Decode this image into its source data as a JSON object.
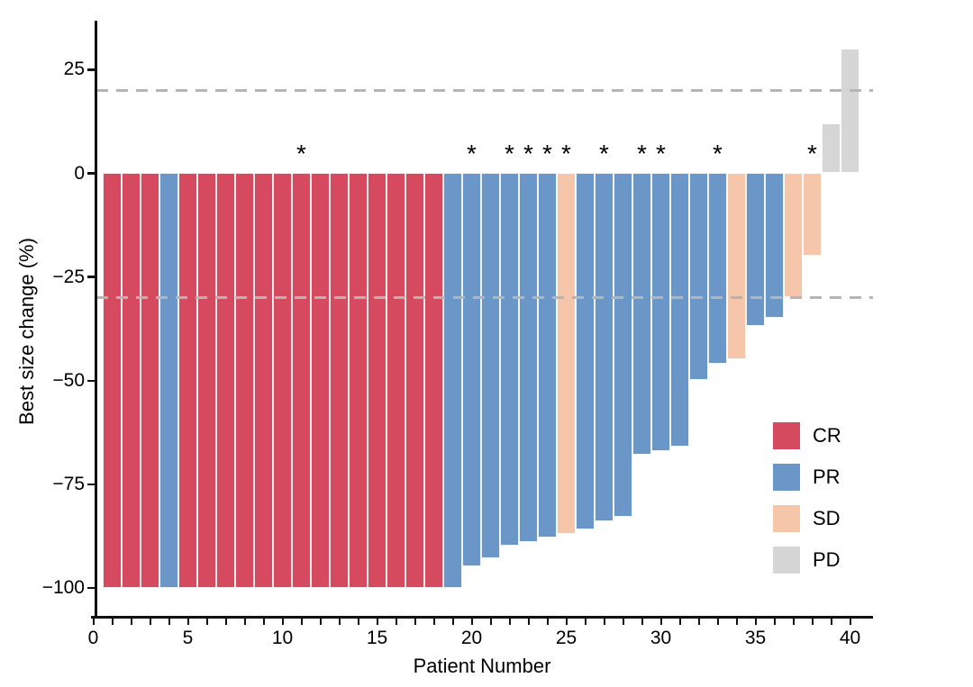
{
  "figure": {
    "y_axis": {
      "title": "Best size change (%)",
      "ticks": [
        {
          "v": 25,
          "label": "25"
        },
        {
          "v": 0,
          "label": "0"
        },
        {
          "v": -25,
          "label": "−25"
        },
        {
          "v": -50,
          "label": "−50"
        },
        {
          "v": -75,
          "label": "−75"
        },
        {
          "v": -100,
          "label": "−100"
        }
      ]
    },
    "x_axis": {
      "title": "Patient Number",
      "major_ticks": [
        {
          "v": 0,
          "label": "0"
        },
        {
          "v": 5,
          "label": "5"
        },
        {
          "v": 10,
          "label": "10"
        },
        {
          "v": 15,
          "label": "15"
        },
        {
          "v": 20,
          "label": "20"
        },
        {
          "v": 25,
          "label": "25"
        },
        {
          "v": 30,
          "label": "30"
        },
        {
          "v": 35,
          "label": "35"
        },
        {
          "v": 40,
          "label": "40"
        }
      ],
      "minor_tick_start": 0,
      "minor_tick_end": 40
    },
    "legend": {
      "items": [
        {
          "key": "cr",
          "label": "CR",
          "color": "#d64a60"
        },
        {
          "key": "pr",
          "label": "PR",
          "color": "#6b96c8"
        },
        {
          "key": "sd",
          "label": "SD",
          "color": "#f6c6aa"
        },
        {
          "key": "pd",
          "label": "PD",
          "color": "#d6d6d6"
        }
      ]
    },
    "annotation_symbol": "*"
  },
  "chart_data": {
    "type": "bar",
    "title": "",
    "xlabel": "Patient Number",
    "ylabel": "Best size change (%)",
    "xlim": [
      -0.5,
      41.3
    ],
    "ylim": [
      -107,
      37
    ],
    "grid": false,
    "legend_position": "right-middle",
    "reference_lines_y": [
      20,
      -30
    ],
    "reference_line_color": "#b5b5b5",
    "response_colors": {
      "CR": "#d64a60",
      "PR": "#6b96c8",
      "SD": "#f6c6aa",
      "PD": "#d6d6d6"
    },
    "asterisk_patients": [
      11,
      20,
      22,
      23,
      24,
      25,
      27,
      29,
      30,
      33,
      38
    ],
    "bars": [
      {
        "patient": 1,
        "value": -100,
        "response": "CR",
        "asterisk": false
      },
      {
        "patient": 2,
        "value": -100,
        "response": "CR",
        "asterisk": false
      },
      {
        "patient": 3,
        "value": -100,
        "response": "CR",
        "asterisk": false
      },
      {
        "patient": 4,
        "value": -100,
        "response": "PR",
        "asterisk": false
      },
      {
        "patient": 5,
        "value": -100,
        "response": "CR",
        "asterisk": false
      },
      {
        "patient": 6,
        "value": -100,
        "response": "CR",
        "asterisk": false
      },
      {
        "patient": 7,
        "value": -100,
        "response": "CR",
        "asterisk": false
      },
      {
        "patient": 8,
        "value": -100,
        "response": "CR",
        "asterisk": false
      },
      {
        "patient": 9,
        "value": -100,
        "response": "CR",
        "asterisk": false
      },
      {
        "patient": 10,
        "value": -100,
        "response": "CR",
        "asterisk": false
      },
      {
        "patient": 11,
        "value": -100,
        "response": "CR",
        "asterisk": true
      },
      {
        "patient": 12,
        "value": -100,
        "response": "CR",
        "asterisk": false
      },
      {
        "patient": 13,
        "value": -100,
        "response": "CR",
        "asterisk": false
      },
      {
        "patient": 14,
        "value": -100,
        "response": "CR",
        "asterisk": false
      },
      {
        "patient": 15,
        "value": -100,
        "response": "CR",
        "asterisk": false
      },
      {
        "patient": 16,
        "value": -100,
        "response": "CR",
        "asterisk": false
      },
      {
        "patient": 17,
        "value": -100,
        "response": "CR",
        "asterisk": false
      },
      {
        "patient": 18,
        "value": -100,
        "response": "CR",
        "asterisk": false
      },
      {
        "patient": 19,
        "value": -100,
        "response": "PR",
        "asterisk": false
      },
      {
        "patient": 20,
        "value": -95,
        "response": "PR",
        "asterisk": true
      },
      {
        "patient": 21,
        "value": -93,
        "response": "PR",
        "asterisk": false
      },
      {
        "patient": 22,
        "value": -90,
        "response": "PR",
        "asterisk": true
      },
      {
        "patient": 23,
        "value": -89,
        "response": "PR",
        "asterisk": true
      },
      {
        "patient": 24,
        "value": -88,
        "response": "PR",
        "asterisk": true
      },
      {
        "patient": 25,
        "value": -87,
        "response": "SD",
        "asterisk": true
      },
      {
        "patient": 26,
        "value": -86,
        "response": "PR",
        "asterisk": false
      },
      {
        "patient": 27,
        "value": -84,
        "response": "PR",
        "asterisk": true
      },
      {
        "patient": 28,
        "value": -83,
        "response": "PR",
        "asterisk": false
      },
      {
        "patient": 29,
        "value": -68,
        "response": "PR",
        "asterisk": true
      },
      {
        "patient": 30,
        "value": -67,
        "response": "PR",
        "asterisk": true
      },
      {
        "patient": 31,
        "value": -66,
        "response": "PR",
        "asterisk": false
      },
      {
        "patient": 32,
        "value": -50,
        "response": "PR",
        "asterisk": false
      },
      {
        "patient": 33,
        "value": -46,
        "response": "PR",
        "asterisk": true
      },
      {
        "patient": 34,
        "value": -45,
        "response": "SD",
        "asterisk": false
      },
      {
        "patient": 35,
        "value": -37,
        "response": "PR",
        "asterisk": false
      },
      {
        "patient": 36,
        "value": -35,
        "response": "PR",
        "asterisk": false
      },
      {
        "patient": 37,
        "value": -30,
        "response": "SD",
        "asterisk": false
      },
      {
        "patient": 38,
        "value": -20,
        "response": "SD",
        "asterisk": true
      },
      {
        "patient": 39,
        "value": 12,
        "response": "PD",
        "asterisk": false
      },
      {
        "patient": 40,
        "value": 30,
        "response": "PD",
        "asterisk": false
      }
    ]
  }
}
